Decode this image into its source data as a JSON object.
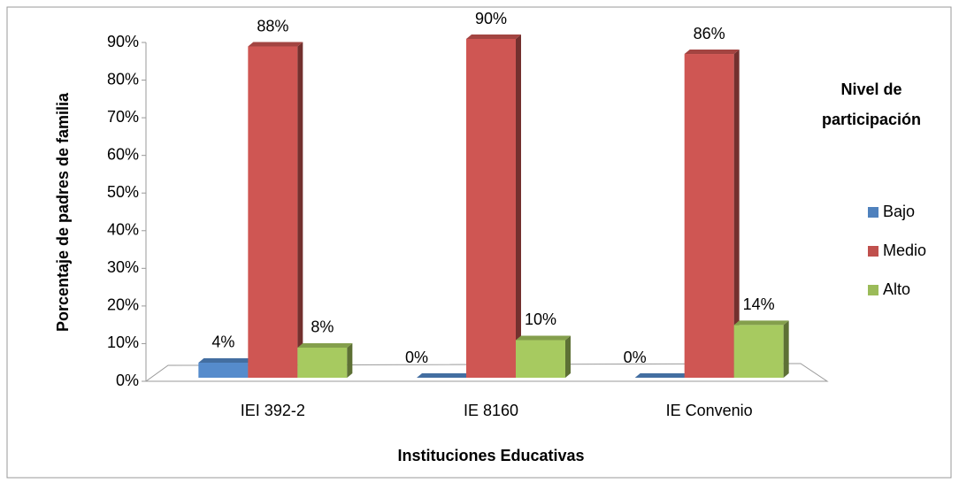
{
  "chart_data": {
    "type": "bar3d",
    "y_label": "Porcentaje de padres de familia",
    "x_label": "Instituciones Educativas",
    "legend_title": "Nivel de participación",
    "legend": "right",
    "categories": [
      "IEI 392-2",
      "IE 8160",
      "IE Convenio"
    ],
    "series": [
      {
        "name": "Bajo",
        "color": "#4f81bd",
        "values": [
          4,
          0,
          0
        ],
        "value_labels": [
          "4%",
          "0%",
          "0%"
        ]
      },
      {
        "name": "Medio",
        "color": "#c0504d",
        "values": [
          88,
          90,
          86
        ],
        "value_labels": [
          "88%",
          "90%",
          "86%"
        ]
      },
      {
        "name": "Alto",
        "color": "#9bbb59",
        "values": [
          8,
          10,
          14
        ],
        "value_labels": [
          "8%",
          "10%",
          "14%"
        ]
      }
    ],
    "ylim": [
      0,
      90
    ],
    "yticks": [
      {
        "value": 0,
        "label": "0%"
      },
      {
        "value": 10,
        "label": "10%"
      },
      {
        "value": 20,
        "label": "20%"
      },
      {
        "value": 30,
        "label": "30%"
      },
      {
        "value": 40,
        "label": "40%"
      },
      {
        "value": 50,
        "label": "50%"
      },
      {
        "value": 60,
        "label": "60%"
      },
      {
        "value": 70,
        "label": "70%"
      },
      {
        "value": 80,
        "label": "80%"
      },
      {
        "value": 90,
        "label": "90%"
      }
    ]
  }
}
